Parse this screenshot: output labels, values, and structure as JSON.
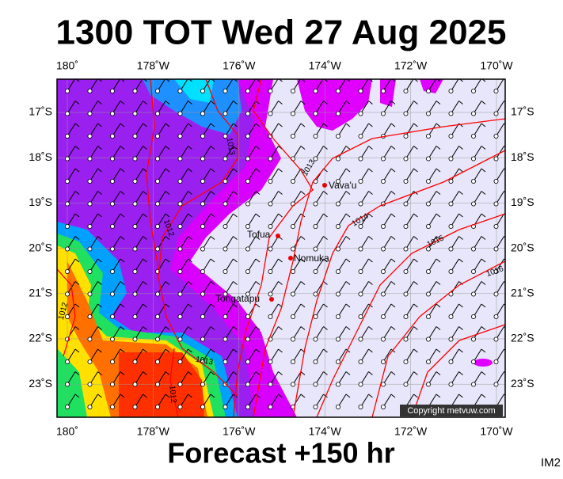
{
  "header": {
    "title": "1300 TOT Wed 27 Aug 2025"
  },
  "map": {
    "lon_labels": [
      "180˚",
      "178˚W",
      "176˚W",
      "174˚W",
      "172˚W",
      "170˚W"
    ],
    "lat_labels": [
      "17˚S",
      "18˚S",
      "19˚S",
      "20˚S",
      "21˚S",
      "22˚S",
      "23˚S"
    ],
    "places": [
      "Vava'u",
      "Tofua",
      "Nomuka",
      "Tongatapu"
    ],
    "isobar_labels": [
      "1013",
      "1013",
      "1012",
      "1014",
      "1015",
      "1016",
      "1012",
      "1013",
      "1012"
    ],
    "copyright": "Copyright metvuw.com"
  },
  "footer": {
    "text": "Forecast +150 hr",
    "code": "IM2"
  }
}
